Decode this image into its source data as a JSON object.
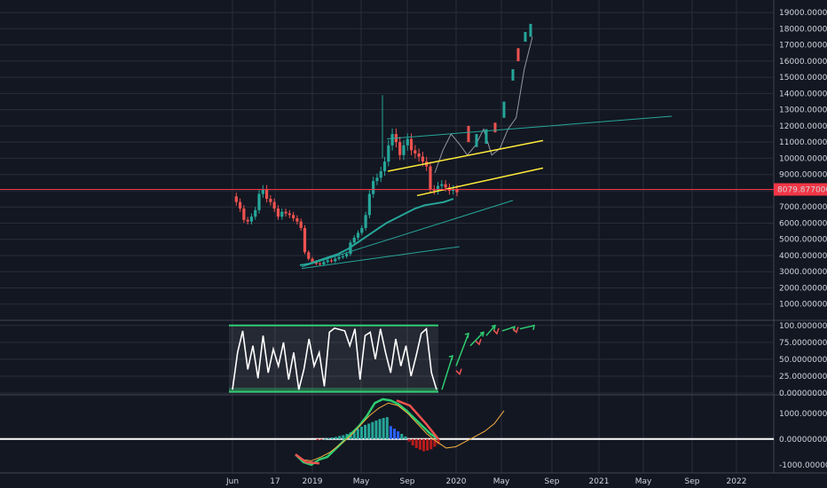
{
  "colors": {
    "background": "#131722",
    "grid": "#2a2e39",
    "candle_up": "#26a69a",
    "candle_down": "#ef5350",
    "ma_green": "#26a69a",
    "channel_yellow": "#ffeb3b",
    "projection_gray": "#9598a1",
    "rsi_line": "#ffffff",
    "rsi_box": "#2ecc71",
    "macd_line": "#2ecc71",
    "signal_line": "#f5b041",
    "hist_pos": "#26a69a",
    "hist_neg": "#b71c1c",
    "hist_blue": "#2962ff",
    "zero_line": "#ffffff",
    "price_marker": "#f23645"
  },
  "chart_data": [
    {
      "type": "line",
      "pane": "price",
      "y_ticks": [
        "19000.00000000",
        "18000.00000000",
        "17000.00000000",
        "16000.00000000",
        "15000.00000000",
        "14000.00000000",
        "13000.00000000",
        "12000.00000000",
        "11000.00000000",
        "10000.00000000",
        "9000.00000000",
        "8000.00000000",
        "7000.00000000",
        "6000.00000000",
        "5000.00000000",
        "4000.00000000",
        "3000.00000000",
        "2000.00000000",
        "1000.00000000"
      ],
      "ylim": [
        0,
        19500
      ],
      "current_price": "8079.87700000",
      "series": [
        {
          "values": [
            7650,
            7300,
            6900,
            6200,
            6100,
            6400,
            6800,
            7800,
            8100,
            7500,
            7300,
            6900,
            6400,
            6700,
            6600,
            6500,
            6300,
            6100,
            5700,
            4200,
            3800,
            3600,
            3500,
            3450,
            3600,
            3700,
            3650,
            3800,
            3900,
            3950,
            4100,
            4800,
            5100,
            5400,
            5700,
            6500,
            7800,
            8600,
            8800,
            9200,
            9800,
            10800,
            11500,
            11000,
            10200,
            10800,
            11200,
            10500,
            10300,
            10100,
            9800,
            9500,
            8100,
            8000,
            8300,
            8400,
            8200,
            8000,
            8100,
            7900
          ]
        },
        {
          "values": [
            3400,
            3500,
            3700,
            3900,
            4100,
            4400,
            4800,
            5200,
            5600,
            6000,
            6300,
            6600,
            6900,
            7100,
            7200,
            7300,
            7500
          ]
        },
        {
          "values": [
            9100,
            10500,
            11500,
            10900,
            10200,
            10800,
            11800,
            10200,
            10600,
            11800,
            12500,
            15500,
            17500
          ]
        }
      ]
    },
    {
      "type": "line",
      "pane": "rsi",
      "y_ticks": [
        "100.00000000",
        "75.00000000",
        "50.00000000",
        "25.00000000",
        "0.00000000"
      ],
      "ylim": [
        0,
        105
      ],
      "series": [
        {
          "values": [
            5,
            60,
            92,
            35,
            70,
            22,
            85,
            30,
            65,
            40,
            75,
            20,
            60,
            5,
            35,
            80,
            40,
            60,
            10,
            90,
            96,
            94,
            92,
            70,
            95,
            20,
            85,
            90,
            50,
            95,
            60,
            30,
            80,
            40,
            70,
            25,
            55,
            88,
            95,
            30,
            5
          ]
        }
      ]
    },
    {
      "type": "line",
      "pane": "macd",
      "y_ticks": [
        "1000.00000000",
        "0.00000000",
        "-1000.00000000"
      ],
      "ylim": [
        -1250,
        1650
      ],
      "series": [
        {
          "values": [
            -600,
            -900,
            -1000,
            -800,
            -700,
            -400,
            -100,
            200,
            500,
            900,
            1400,
            1550,
            1500,
            1350,
            1100,
            800,
            500,
            200,
            0
          ]
        },
        {
          "values": [
            -800,
            -850,
            -700,
            -500,
            -200,
            100,
            500,
            900,
            1200,
            1400,
            1300,
            1000,
            600,
            200,
            -100,
            -350,
            -300,
            -100,
            100,
            300,
            600,
            1100
          ]
        },
        {
          "values": [
            -50,
            -30,
            10,
            40,
            60,
            80,
            120,
            150,
            200,
            260,
            320,
            400,
            480,
            550,
            600,
            660,
            720,
            780,
            820,
            850,
            500,
            400,
            300,
            200,
            100,
            -100,
            -250,
            -350,
            -420,
            -480,
            -450,
            -400,
            -300,
            -200
          ]
        }
      ]
    }
  ],
  "x_axis": {
    "labels": [
      "Jun",
      "17",
      "2019",
      "May",
      "Sep",
      "2020",
      "May",
      "Sep",
      "2021",
      "May",
      "Sep",
      "2022"
    ]
  }
}
